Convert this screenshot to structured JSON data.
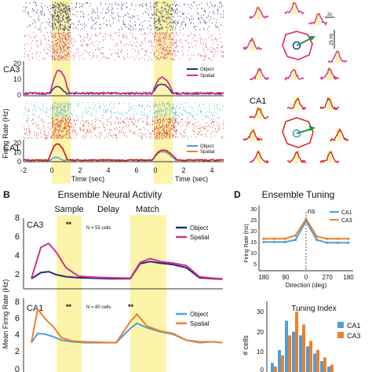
{
  "panel_labels": {
    "b": "B",
    "d": "D"
  },
  "colors": {
    "object_ca3": "#2a2a7a",
    "spatial_ca3": "#d62f8c",
    "object_ca1": "#4b9fdc",
    "spatial_ca1": "#f07f2a",
    "tuning_ca1": "#4b9fdc",
    "tuning_ca3": "#f07f2a",
    "highlight": "#fbf4a9",
    "tuning_red": "#d3261b",
    "octagon": "#e01a67",
    "vector": "#1a9c3e",
    "raster_ca3_obj": "#3a3a6a",
    "raster_ca3_sp": "#d34b86",
    "raster_ca1_obj": "#5fb6cf",
    "raster_ca1_sp": "#d64a3a"
  },
  "panel_a": {
    "ca3_label": "CA3",
    "ca1_label": "CA1",
    "ylabel": "Firing Rate (Hz)",
    "xlabel_left": "Time (sec)",
    "xlabel_right": "Time (sec)",
    "x_ticks": [
      "-2",
      "0",
      "2",
      "4",
      "6",
      "0",
      "2",
      "4"
    ],
    "y_ticks_ca3": [
      "0",
      "10",
      "20"
    ],
    "y_ticks_ca1": [
      "0",
      "10",
      "20"
    ],
    "legend_ca3": [
      "Object",
      "Spatial"
    ],
    "legend_ca1": [
      "Object",
      "Spatial"
    ]
  },
  "panel_c": {
    "scale_time": "2s",
    "scale_rate": "25 Hz",
    "ca1_label": "CA1"
  },
  "panel_b": {
    "title": "Ensemble Neural Activity",
    "epochs": [
      "Sample",
      "Delay",
      "Match"
    ],
    "ylabel": "Mean Firing Rate (Hz)",
    "ca3": {
      "label": "CA3",
      "n": "N = 55 cells",
      "y_ticks": [
        "2",
        "4",
        "6",
        "8"
      ],
      "sig": "**",
      "legend": [
        "Object",
        "Spatial"
      ]
    },
    "ca1": {
      "label": "CA1",
      "n": "N = 80 cells",
      "y_ticks": [
        "0",
        "2",
        "4",
        "6",
        "8"
      ],
      "sig": [
        "**",
        "**"
      ],
      "legend": [
        "Object",
        "Spatial"
      ]
    }
  },
  "panel_d": {
    "title": "Ensemble Tuning",
    "ns_label": "ns",
    "ylabel": "Firing Rate (Hz)",
    "xlabel": "Direction (deg)",
    "x_ticks": [
      "180",
      "90",
      "0",
      "270",
      "180"
    ],
    "y_ticks": [
      "5",
      "10",
      "15",
      "20",
      "25",
      "30"
    ],
    "legend": [
      "CA1",
      "CA3"
    ],
    "hist_title": "Tuning Index",
    "hist_ylabel": "# cells",
    "hist_y_ticks": [
      "0",
      "10",
      "20",
      "30"
    ],
    "hist_legend": [
      "CA1",
      "CA3"
    ]
  },
  "chart_data": [
    {
      "type": "line",
      "title": "Ensemble Neural Activity",
      "region": "CA3",
      "ylabel": "Mean Firing Rate (Hz)",
      "ylim": [
        1.5,
        8.5
      ],
      "x": [
        0,
        0.3,
        0.55,
        0.8,
        1.1,
        1.5,
        2.0,
        2.5,
        3.0,
        3.3,
        3.6,
        3.9,
        4.3,
        4.7,
        5.1,
        5.5,
        5.8
      ],
      "series": [
        {
          "name": "Object",
          "values": [
            2.5,
            3.1,
            3.2,
            2.9,
            2.7,
            2.6,
            2.55,
            2.5,
            2.5,
            4.0,
            4.2,
            4.05,
            3.9,
            3.6,
            2.6,
            2.5,
            2.45
          ]
        },
        {
          "name": "Spatial",
          "values": [
            2.5,
            5.6,
            6.0,
            5.1,
            3.6,
            2.75,
            2.65,
            2.6,
            2.55,
            4.1,
            4.5,
            4.2,
            4.05,
            3.8,
            2.7,
            2.55,
            2.5
          ]
        }
      ]
    },
    {
      "type": "line",
      "title": "Ensemble Neural Activity",
      "region": "CA1",
      "ylabel": "Mean Firing Rate (Hz)",
      "ylim": [
        -0.2,
        8.6
      ],
      "x": [
        0,
        0.2,
        0.45,
        0.7,
        0.95,
        1.3,
        1.7,
        2.2,
        2.7,
        3.0,
        3.2,
        3.5,
        3.9,
        4.3,
        4.7,
        5.1,
        5.5,
        5.8
      ],
      "series": [
        {
          "name": "Object",
          "values": [
            3.3,
            4.4,
            4.3,
            4.0,
            3.6,
            3.4,
            3.3,
            3.3,
            3.3,
            5.0,
            5.6,
            5.1,
            4.6,
            4.3,
            3.6,
            3.3,
            3.4,
            3.3
          ]
        },
        {
          "name": "Spatial",
          "values": [
            3.3,
            7.3,
            6.1,
            5.2,
            3.9,
            3.5,
            3.4,
            3.35,
            3.3,
            5.8,
            6.7,
            5.3,
            4.7,
            4.4,
            3.6,
            3.4,
            3.4,
            3.3
          ]
        }
      ]
    },
    {
      "type": "line",
      "title": "Ensemble Tuning",
      "xlabel": "Direction (deg)",
      "ylabel": "Firing Rate (Hz)",
      "categories": [
        "180",
        "135",
        "90",
        "45",
        "0",
        "315",
        "270",
        "225",
        "180"
      ],
      "ylim": [
        5,
        32
      ],
      "series": [
        {
          "name": "CA1",
          "values": [
            15.5,
            15.5,
            15.5,
            16.5,
            25.0,
            16.5,
            15.2,
            15.2,
            15.2
          ]
        },
        {
          "name": "CA3",
          "values": [
            17.0,
            17.0,
            17.0,
            18.5,
            26.0,
            18.0,
            17.0,
            17.0,
            17.0
          ]
        }
      ]
    },
    {
      "type": "bar",
      "title": "Tuning Index",
      "ylabel": "# cells",
      "ylim": [
        0,
        36
      ],
      "categories": [
        "b1",
        "b2",
        "b3",
        "b4",
        "b5",
        "b6",
        "b7",
        "b8",
        "b9"
      ],
      "series": [
        {
          "name": "CA1",
          "values": [
            5,
            12,
            28,
            22,
            20,
            14,
            10,
            6,
            3
          ]
        },
        {
          "name": "CA3",
          "values": [
            3,
            9,
            20,
            33,
            26,
            17,
            12,
            8,
            4
          ]
        }
      ]
    }
  ]
}
